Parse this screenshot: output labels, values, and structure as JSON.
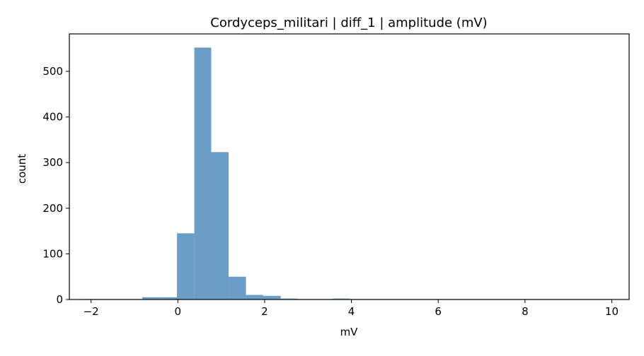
{
  "chart_data": {
    "type": "bar",
    "title": "Cordyceps_militari | diff_1 | amplitude (mV)",
    "xlabel": "mV",
    "ylabel": "count",
    "xlim": [
      -2.5,
      10.4
    ],
    "ylim": [
      0,
      582
    ],
    "grid": false,
    "bar_color": "#6b9ec6",
    "xticks": [
      -2,
      0,
      2,
      4,
      6,
      8,
      10
    ],
    "yticks": [
      0,
      100,
      200,
      300,
      400,
      500
    ],
    "bins": [
      {
        "x0": -2.2,
        "x1": -1.8,
        "count": 1
      },
      {
        "x0": -1.8,
        "x1": -1.4,
        "count": 1
      },
      {
        "x0": -1.4,
        "x1": -1.0,
        "count": 1
      },
      {
        "x0": -1.0,
        "x1": -0.82,
        "count": 1
      },
      {
        "x0": -0.82,
        "x1": -0.41,
        "count": 5
      },
      {
        "x0": -0.41,
        "x1": -0.02,
        "count": 5
      },
      {
        "x0": -0.02,
        "x1": 0.38,
        "count": 145
      },
      {
        "x0": 0.38,
        "x1": 0.77,
        "count": 552
      },
      {
        "x0": 0.77,
        "x1": 1.17,
        "count": 323
      },
      {
        "x0": 1.17,
        "x1": 1.57,
        "count": 50
      },
      {
        "x0": 1.57,
        "x1": 1.97,
        "count": 10
      },
      {
        "x0": 1.97,
        "x1": 2.37,
        "count": 8
      },
      {
        "x0": 2.37,
        "x1": 2.76,
        "count": 2
      },
      {
        "x0": 2.76,
        "x1": 3.16,
        "count": 1
      },
      {
        "x0": 3.16,
        "x1": 3.56,
        "count": 1
      },
      {
        "x0": 3.56,
        "x1": 3.96,
        "count": 2
      },
      {
        "x0": 3.96,
        "x1": 4.36,
        "count": 1
      },
      {
        "x0": 4.36,
        "x1": 4.76,
        "count": 1
      },
      {
        "x0": 4.76,
        "x1": 5.16,
        "count": 1
      },
      {
        "x0": 5.16,
        "x1": 5.56,
        "count": 1
      },
      {
        "x0": 5.56,
        "x1": 5.96,
        "count": 1
      },
      {
        "x0": 5.96,
        "x1": 6.36,
        "count": 1
      },
      {
        "x0": 6.36,
        "x1": 6.76,
        "count": 1
      },
      {
        "x0": 6.76,
        "x1": 7.16,
        "count": 1
      },
      {
        "x0": 7.16,
        "x1": 7.56,
        "count": 1
      },
      {
        "x0": 7.56,
        "x1": 7.96,
        "count": 1
      },
      {
        "x0": 7.96,
        "x1": 8.36,
        "count": 1
      },
      {
        "x0": 8.36,
        "x1": 8.76,
        "count": 1
      },
      {
        "x0": 8.76,
        "x1": 9.16,
        "count": 1
      },
      {
        "x0": 9.16,
        "x1": 9.56,
        "count": 1
      },
      {
        "x0": 9.56,
        "x1": 9.96,
        "count": 1
      }
    ]
  }
}
